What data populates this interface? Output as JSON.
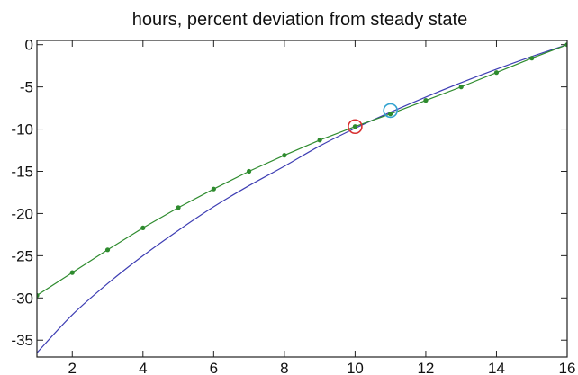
{
  "chart_data": {
    "type": "line",
    "title": "hours, percent deviation from steady state",
    "xlabel": "",
    "ylabel": "",
    "xlim": [
      1,
      16
    ],
    "ylim": [
      -37,
      0.5
    ],
    "xticks": [
      2,
      4,
      6,
      8,
      10,
      12,
      14,
      16
    ],
    "yticks": [
      0,
      -5,
      -10,
      -15,
      -20,
      -25,
      -30,
      -35
    ],
    "grid": false,
    "legend": "none",
    "series": [
      {
        "color": "#3d3db3",
        "style": "solid-line",
        "x": [
          1,
          2,
          3,
          4,
          5,
          6,
          7,
          8,
          9,
          10,
          11,
          12,
          13,
          14,
          15,
          16
        ],
        "y": [
          -36.5,
          -32.0,
          -28.3,
          -25.0,
          -22.0,
          -19.2,
          -16.7,
          -14.4,
          -12.0,
          -9.9,
          -8.0,
          -6.2,
          -4.5,
          -2.9,
          -1.4,
          0.0
        ]
      },
      {
        "color": "#2e8b2e",
        "style": "line-with-dots",
        "x": [
          1,
          2,
          3,
          4,
          5,
          6,
          7,
          8,
          9,
          10,
          11,
          12,
          13,
          14,
          15,
          16
        ],
        "y": [
          -29.7,
          -27.0,
          -24.3,
          -21.7,
          -19.3,
          -17.1,
          -15.0,
          -13.1,
          -11.3,
          -9.7,
          -8.2,
          -6.6,
          -5.0,
          -3.3,
          -1.6,
          0.0
        ]
      }
    ],
    "annotations": [
      {
        "type": "circle-marker",
        "color": "#d83030",
        "x": 10,
        "y": -9.7
      },
      {
        "type": "circle-marker",
        "color": "#33a3d0",
        "x": 11,
        "y": -7.8
      }
    ]
  }
}
